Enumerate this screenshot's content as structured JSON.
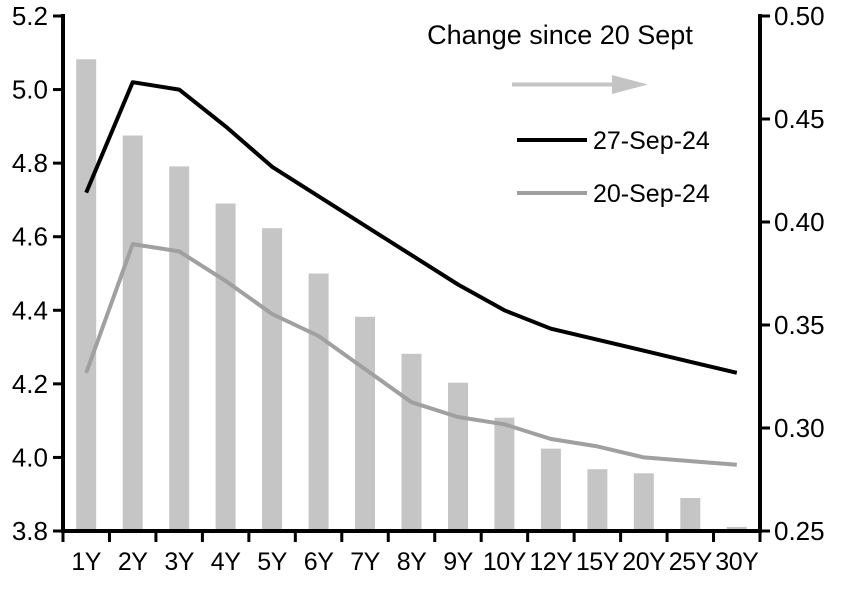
{
  "chart_data": {
    "type": "bar+line",
    "title": "",
    "categories": [
      "1Y",
      "2Y",
      "3Y",
      "4Y",
      "5Y",
      "6Y",
      "7Y",
      "8Y",
      "9Y",
      "10Y",
      "12Y",
      "15Y",
      "20Y",
      "25Y",
      "30Y"
    ],
    "bar_series": {
      "name": "Change since 20 Sept",
      "axis": "right",
      "color": "#c5c5c5",
      "values": [
        0.479,
        0.442,
        0.427,
        0.409,
        0.397,
        0.375,
        0.354,
        0.336,
        0.322,
        0.305,
        0.29,
        0.28,
        0.278,
        0.266,
        0.252
      ]
    },
    "line_series": [
      {
        "name": "27-Sep-24",
        "axis": "left",
        "color": "#000000",
        "values": [
          4.72,
          5.02,
          5.0,
          4.9,
          4.79,
          4.71,
          4.63,
          4.55,
          4.47,
          4.4,
          4.35,
          4.32,
          4.29,
          4.26,
          4.23
        ]
      },
      {
        "name": "20-Sep-24",
        "axis": "left",
        "color": "#a0a0a0",
        "values": [
          4.23,
          4.58,
          4.56,
          4.48,
          4.39,
          4.33,
          4.24,
          4.15,
          4.11,
          4.09,
          4.05,
          4.03,
          4.0,
          3.99,
          3.98
        ]
      }
    ],
    "left_axis": {
      "min": 3.8,
      "max": 5.2,
      "tick_labels": [
        "5.2",
        "5.0",
        "4.8",
        "4.6",
        "4.4",
        "4.2",
        "4.0",
        "3.8"
      ]
    },
    "right_axis": {
      "min": 0.25,
      "max": 0.5,
      "tick_labels": [
        "0.50",
        "0.45",
        "0.40",
        "0.35",
        "0.30",
        "0.25"
      ]
    },
    "legend": {
      "title": "Change since 20 Sept",
      "arrow_icon": "right-arrow",
      "arrow_color": "#c4c4c4",
      "position": "top-right"
    },
    "grid": false
  }
}
